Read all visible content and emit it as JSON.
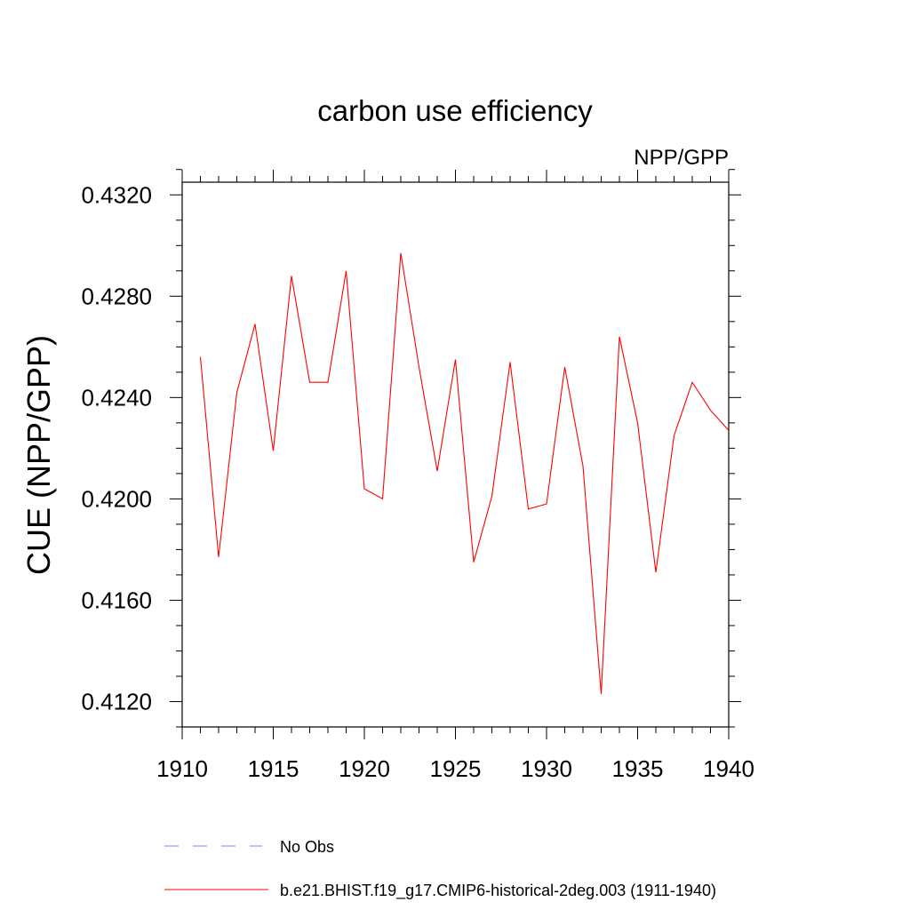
{
  "chart_data": {
    "type": "line",
    "title": "carbon use efficiency",
    "subtitle": "NPP/GPP",
    "xlabel": "",
    "ylabel": "CUE  (NPP/GPP)",
    "xlim": [
      1910,
      1940
    ],
    "ylim": [
      0.411,
      0.4325
    ],
    "x_major_ticks": [
      1910,
      1915,
      1920,
      1925,
      1930,
      1935,
      1940
    ],
    "x_tick_labels": [
      "1910",
      "1915",
      "1920",
      "1925",
      "1930",
      "1935",
      "1940"
    ],
    "y_major_ticks": [
      0.412,
      0.416,
      0.42,
      0.424,
      0.428,
      0.432
    ],
    "y_tick_labels": [
      "0.4120",
      "0.4160",
      "0.4200",
      "0.4240",
      "0.4280",
      "0.4320"
    ],
    "y_minor_step": 0.001,
    "x_minor_step": 1,
    "grid": false,
    "legend_position": "bottom",
    "series": [
      {
        "name": "No Obs",
        "color": "#8080ff",
        "dash": "dashed",
        "x": [],
        "values": []
      },
      {
        "name": "b.e21.BHIST.f19_g17.CMIP6-historical-2deg.003 (1911-1940)",
        "color": "#ff0000",
        "dash": "solid",
        "x": [
          1911,
          1912,
          1913,
          1914,
          1915,
          1916,
          1917,
          1918,
          1919,
          1920,
          1921,
          1922,
          1923,
          1924,
          1925,
          1926,
          1927,
          1928,
          1929,
          1930,
          1931,
          1932,
          1933,
          1934,
          1935,
          1936,
          1937,
          1938,
          1939,
          1940
        ],
        "values": [
          0.4256,
          0.4177,
          0.4242,
          0.4269,
          0.4219,
          0.4288,
          0.4246,
          0.4246,
          0.429,
          0.4204,
          0.42,
          0.4297,
          0.4252,
          0.4211,
          0.4255,
          0.4175,
          0.4201,
          0.4254,
          0.4196,
          0.4198,
          0.4252,
          0.4213,
          0.4123,
          0.4264,
          0.423,
          0.4171,
          0.4225,
          0.4246,
          0.4235,
          0.4227
        ]
      }
    ]
  }
}
